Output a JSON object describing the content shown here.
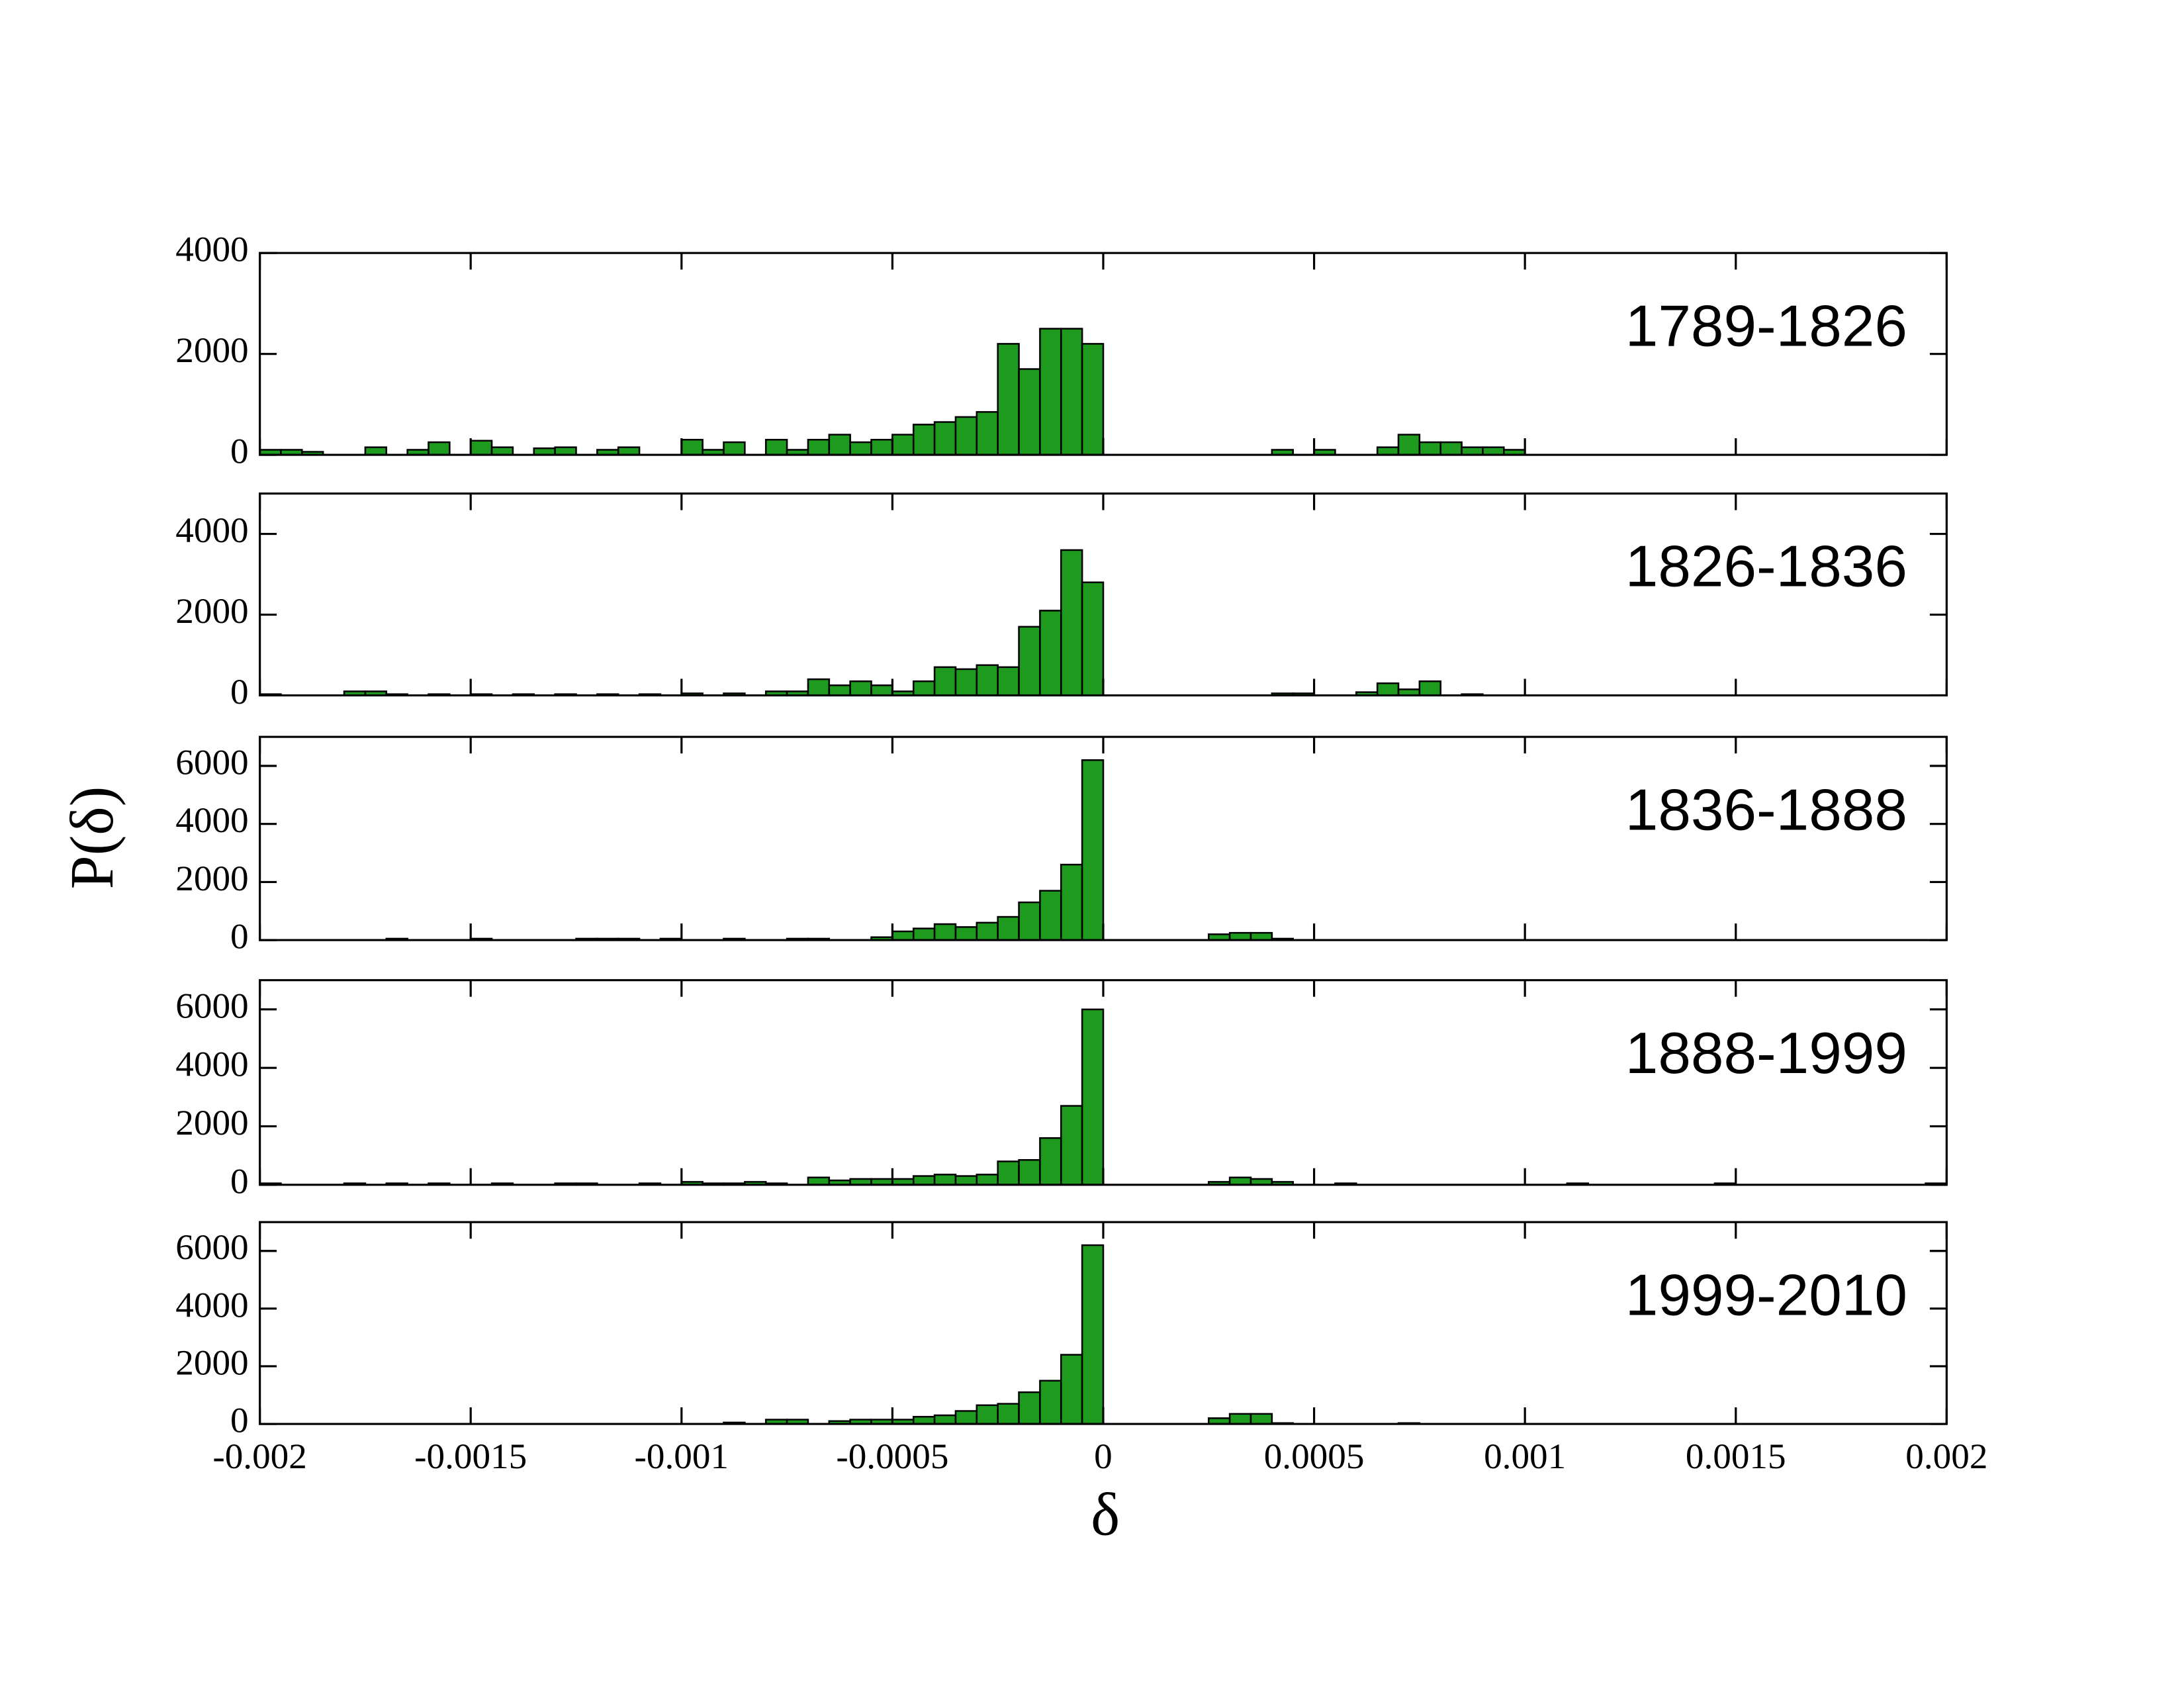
{
  "chart_data": {
    "type": "histogram",
    "xlabel": "δ",
    "ylabel": "P(δ)",
    "color": "#1e9a1e",
    "xlim": [
      -0.002,
      0.002
    ],
    "xticks": [
      -0.002,
      -0.0015,
      -0.001,
      -0.0005,
      0,
      0.0005,
      0.001,
      0.0015,
      0.002
    ],
    "bins": [
      -0.002,
      -0.00195,
      -0.0019,
      -0.00185,
      -0.0018,
      -0.00175,
      -0.0017,
      -0.00165,
      -0.0016,
      -0.00155,
      -0.0015,
      -0.00145,
      -0.0014,
      -0.00135,
      -0.0013,
      -0.00125,
      -0.0012,
      -0.00115,
      -0.0011,
      -0.00105,
      -0.001,
      -0.00095,
      -0.0009,
      -0.00085,
      -0.0008,
      -0.00075,
      -0.0007,
      -0.00065,
      -0.0006,
      -0.00055,
      -0.0005,
      -0.00045,
      -0.0004,
      -0.00035,
      -0.0003,
      -0.00025,
      -0.0002,
      -0.00015,
      -0.0001,
      -5e-05,
      0,
      5e-05,
      0.0001,
      0.00015,
      0.0002,
      0.00025,
      0.0003,
      0.00035,
      0.0004,
      0.00045,
      0.0005,
      0.00055,
      0.0006,
      0.00065,
      0.0007,
      0.00075,
      0.0008,
      0.00085,
      0.0009,
      0.00095,
      0.001,
      0.00105,
      0.0011,
      0.00115,
      0.0012,
      0.00125,
      0.0013,
      0.00135,
      0.0014,
      0.00145,
      0.0015,
      0.00155,
      0.0016,
      0.00165,
      0.0017,
      0.00175,
      0.0018,
      0.00185,
      0.0019,
      0.00195,
      0.002
    ],
    "series": [
      {
        "name": "1789-1826",
        "ylim": [
          0,
          4000
        ],
        "yticks": [
          0,
          2000,
          4000
        ],
        "values": [
          100,
          100,
          60,
          0,
          0,
          150,
          0,
          100,
          250,
          0,
          280,
          150,
          0,
          130,
          150,
          0,
          100,
          150,
          0,
          0,
          300,
          100,
          250,
          0,
          300,
          100,
          300,
          400,
          250,
          300,
          400,
          600,
          650,
          750,
          850,
          2200,
          1700,
          2500,
          2500,
          2200,
          0,
          0,
          0,
          0,
          0,
          0,
          0,
          0,
          100,
          0,
          100,
          0,
          0,
          150,
          400,
          250,
          250,
          150,
          150,
          100,
          0,
          0,
          0,
          0,
          0,
          0,
          0,
          0,
          0,
          0,
          0,
          0,
          0,
          0,
          0,
          0,
          0,
          0,
          0,
          0
        ]
      },
      {
        "name": "1826-1836",
        "ylim": [
          0,
          5000
        ],
        "yticks": [
          0,
          2000,
          4000
        ],
        "values": [
          30,
          0,
          0,
          0,
          100,
          100,
          30,
          0,
          30,
          0,
          30,
          0,
          30,
          0,
          30,
          0,
          30,
          0,
          30,
          0,
          50,
          0,
          50,
          0,
          100,
          100,
          400,
          250,
          350,
          250,
          100,
          350,
          700,
          650,
          750,
          700,
          1700,
          2100,
          3600,
          2800,
          0,
          0,
          0,
          0,
          0,
          0,
          0,
          0,
          50,
          50,
          0,
          0,
          80,
          300,
          150,
          350,
          0,
          30,
          0,
          0,
          0,
          0,
          0,
          0,
          0,
          0,
          0,
          0,
          0,
          0,
          0,
          0,
          0,
          0,
          0,
          0,
          0,
          0,
          0,
          0
        ]
      },
      {
        "name": "1836-1888",
        "ylim": [
          0,
          7000
        ],
        "yticks": [
          0,
          2000,
          4000,
          6000
        ],
        "values": [
          0,
          0,
          0,
          0,
          0,
          0,
          50,
          0,
          0,
          0,
          50,
          0,
          0,
          0,
          0,
          50,
          50,
          50,
          0,
          50,
          0,
          0,
          50,
          0,
          0,
          50,
          50,
          0,
          0,
          100,
          300,
          400,
          550,
          450,
          600,
          800,
          1300,
          1700,
          2600,
          6200,
          0,
          0,
          0,
          0,
          0,
          200,
          250,
          250,
          50,
          0,
          0,
          0,
          0,
          0,
          0,
          0,
          0,
          0,
          0,
          0,
          0,
          0,
          0,
          0,
          0,
          0,
          0,
          0,
          0,
          0,
          0,
          0,
          0,
          0,
          0,
          0,
          0,
          0,
          0,
          0
        ]
      },
      {
        "name": "1888-1999",
        "ylim": [
          0,
          7000
        ],
        "yticks": [
          0,
          2000,
          4000,
          6000
        ],
        "values": [
          50,
          0,
          0,
          0,
          50,
          0,
          50,
          0,
          50,
          0,
          0,
          50,
          0,
          0,
          50,
          50,
          0,
          0,
          50,
          0,
          100,
          50,
          50,
          100,
          50,
          0,
          250,
          150,
          200,
          200,
          200,
          300,
          350,
          300,
          350,
          800,
          850,
          1600,
          2700,
          6000,
          0,
          0,
          0,
          0,
          0,
          100,
          250,
          200,
          100,
          0,
          0,
          50,
          0,
          0,
          0,
          0,
          0,
          0,
          0,
          0,
          0,
          0,
          50,
          0,
          0,
          0,
          0,
          0,
          0,
          50,
          0,
          0,
          0,
          0,
          0,
          0,
          0,
          0,
          0,
          50
        ]
      },
      {
        "name": "1999-2010",
        "ylim": [
          0,
          7000
        ],
        "yticks": [
          0,
          2000,
          4000,
          6000
        ],
        "values": [
          0,
          0,
          0,
          0,
          0,
          0,
          0,
          0,
          0,
          0,
          0,
          0,
          0,
          0,
          0,
          0,
          0,
          0,
          0,
          0,
          0,
          0,
          50,
          0,
          150,
          150,
          0,
          100,
          150,
          150,
          150,
          250,
          300,
          450,
          650,
          700,
          1100,
          1500,
          2400,
          6200,
          0,
          0,
          0,
          0,
          0,
          200,
          350,
          350,
          30,
          0,
          0,
          0,
          0,
          0,
          30,
          0,
          0,
          0,
          0,
          0,
          0,
          0,
          0,
          0,
          0,
          0,
          0,
          0,
          0,
          0,
          0,
          0,
          0,
          0,
          0,
          0,
          0,
          0,
          0,
          0
        ]
      }
    ]
  }
}
